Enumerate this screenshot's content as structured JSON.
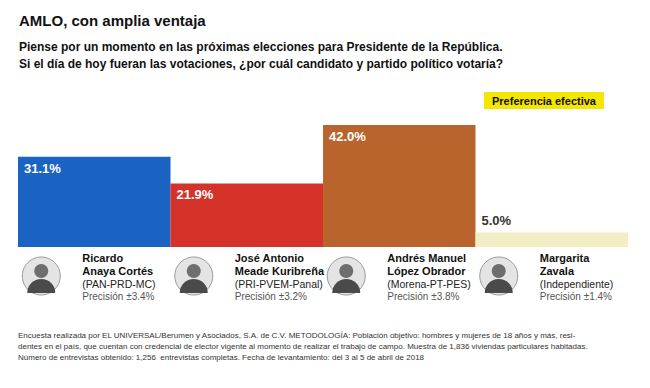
{
  "chart_data": {
    "type": "bar",
    "title": "AMLO, con amplia ventaja",
    "subtitle": [
      "Piense por un momento en las próximas elecciones para Presidente de la República.",
      "Si el día de hoy fueran las votaciones, ¿por cuál candidato y partido político votaría?"
    ],
    "annotation": "Preferencia efectiva",
    "categories": [
      "Ricardo\nAnaya Cortés",
      "José Antonio\nMeade Kuribreña",
      "Andrés Manuel\nLópez Obrador",
      "Margarita\nZavala"
    ],
    "parties": [
      "(PAN-PRD-MC)",
      "(PRI-PVEM-Panal)",
      "(Morena-PT-PES)",
      "(Independiente)"
    ],
    "precision": [
      "Precisión ±3.4%",
      "Precisión ±3.2%",
      "Precisión ±3.8%",
      "Precisión ±1.4%"
    ],
    "values": [
      31.1,
      21.9,
      42.0,
      5.0
    ],
    "value_labels": [
      "31.1%",
      "21.9%",
      "42.0%",
      "5.0%"
    ],
    "colors": [
      "#1a63c2",
      "#d5322a",
      "#b8642c",
      "#f1eec6"
    ],
    "ylim": [
      0,
      42
    ],
    "grid": false,
    "data_labels": true,
    "tick_labels": "x",
    "footnote": [
      "Encuesta realizada por EL UNIVERSAL/Berumen y Asociados, S.A. de C.V. METODOLOGÍA: Población objetivo: hombres y mujeres de 18 años y más, resi-",
      "dentes en el país, que cuentan con credencial de elector vigente al momento de realizar el trabajo de campo. Muestra de 1,836 viviendas particulares habitadas.",
      "Número de entrevistas obtenido: 1,256  entrevistas completas. Fecha de levantamiento: del 3 al 5 de abril de 2018"
    ]
  }
}
